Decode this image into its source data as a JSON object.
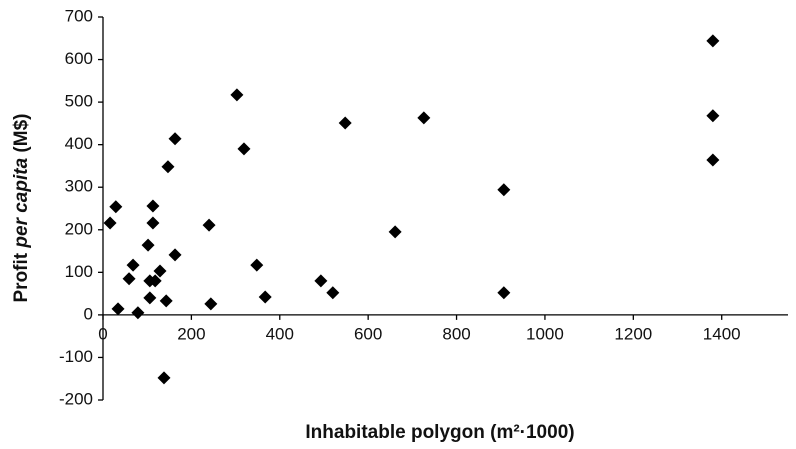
{
  "chart_data": {
    "type": "scatter",
    "x_label": "Inhabitable polygon (m²·1000)",
    "y_label_parts": [
      "Profit",
      "per capita",
      "(M$)"
    ],
    "x": [
      16,
      29,
      34,
      59,
      68,
      79,
      102,
      106,
      106,
      113,
      113,
      118,
      129,
      138,
      143,
      147,
      163,
      163,
      240,
      244,
      303,
      319,
      348,
      367,
      493,
      520,
      548,
      661,
      726,
      907,
      907,
      1380,
      1380,
      1380
    ],
    "values": [
      216,
      254,
      14,
      85,
      117,
      5,
      164,
      80,
      40,
      256,
      216,
      80,
      103,
      -148,
      33,
      348,
      414,
      141,
      211,
      26,
      517,
      390,
      117,
      42,
      80,
      52,
      451,
      195,
      463,
      294,
      52,
      644,
      468,
      364
    ],
    "color": "#000000",
    "xlim": [
      0,
      1550
    ],
    "xticks": [
      0,
      200,
      400,
      600,
      800,
      1000,
      1200,
      1400
    ],
    "ylim": [
      -200,
      700
    ],
    "yticks": [
      -200,
      -100,
      0,
      100,
      200,
      300,
      400,
      500,
      600,
      700
    ],
    "grid": false
  }
}
